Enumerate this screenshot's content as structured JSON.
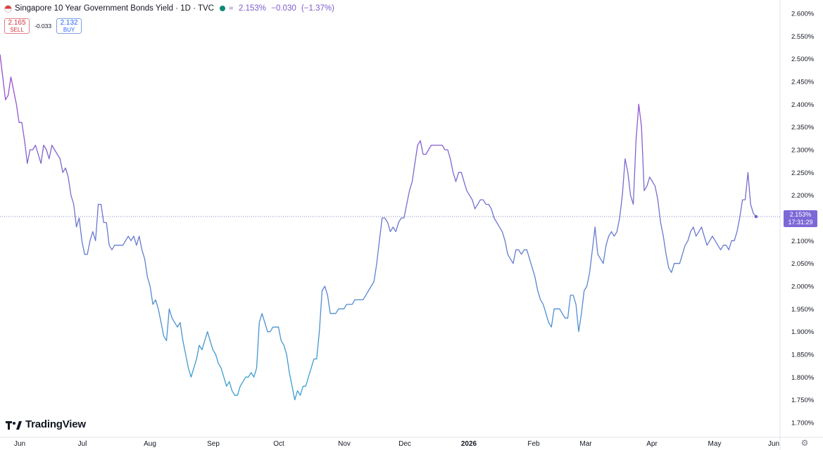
{
  "header": {
    "title": "Singapore 10 Year Government Bonds Yield · 1D · TVC",
    "last_value": "2.153%",
    "change": "−0.030",
    "change_pct": "(−1.37%)",
    "flag_icon": "singapore-flag-icon",
    "status_icon": "market-status-dot-icon",
    "compare_icon": "wave-icon"
  },
  "trade": {
    "sell_price": "2.165",
    "sell_label": "SELL",
    "spread": "-0.033",
    "buy_price": "2.132",
    "buy_label": "BUY"
  },
  "logo_text": "TradingView",
  "price_tag": {
    "value": "2.153%",
    "countdown": "17:31:29"
  },
  "chart_data": {
    "type": "line",
    "xlabel": "",
    "ylabel": "",
    "ylim": [
      1.685,
      2.61
    ],
    "y_ticks": [
      "2.600%",
      "2.550%",
      "2.500%",
      "2.450%",
      "2.400%",
      "2.350%",
      "2.300%",
      "2.250%",
      "2.200%",
      "2.150%",
      "2.100%",
      "2.050%",
      "2.000%",
      "1.950%",
      "1.900%",
      "1.850%",
      "1.800%",
      "1.750%",
      "1.700%"
    ],
    "x_ticks": [
      "Jun",
      "Jul",
      "Aug",
      "Sep",
      "Oct",
      "Nov",
      "Dec",
      "2026",
      "Feb",
      "Mar",
      "Apr",
      "May",
      "Jun"
    ],
    "grid": false,
    "gradient": [
      "#9a4fd0",
      "#3a9fd0"
    ],
    "last_value": 2.153,
    "series": [
      {
        "values": [
          2.51,
          2.46,
          2.41,
          2.42,
          2.46,
          2.43,
          2.4,
          2.36,
          2.36,
          2.32,
          2.27,
          2.3,
          2.3,
          2.31,
          2.29,
          2.27,
          2.31,
          2.3,
          2.28,
          2.31,
          2.3,
          2.29,
          2.28,
          2.25,
          2.26,
          2.24,
          2.2,
          2.18,
          2.13,
          2.15,
          2.1,
          2.07,
          2.07,
          2.1,
          2.12,
          2.1,
          2.18,
          2.18,
          2.14,
          2.14,
          2.09,
          2.08,
          2.09,
          2.09,
          2.09,
          2.09,
          2.1,
          2.11,
          2.1,
          2.11,
          2.09,
          2.11,
          2.08,
          2.06,
          2.02,
          2.0,
          1.96,
          1.97,
          1.95,
          1.92,
          1.89,
          1.88,
          1.95,
          1.93,
          1.92,
          1.91,
          1.92,
          1.88,
          1.85,
          1.82,
          1.8,
          1.82,
          1.84,
          1.87,
          1.86,
          1.88,
          1.9,
          1.88,
          1.86,
          1.85,
          1.83,
          1.82,
          1.8,
          1.78,
          1.79,
          1.77,
          1.76,
          1.76,
          1.78,
          1.79,
          1.8,
          1.8,
          1.81,
          1.8,
          1.82,
          1.92,
          1.94,
          1.92,
          1.9,
          1.9,
          1.91,
          1.91,
          1.91,
          1.88,
          1.87,
          1.85,
          1.81,
          1.78,
          1.75,
          1.77,
          1.76,
          1.78,
          1.78,
          1.8,
          1.82,
          1.84,
          1.84,
          1.9,
          1.99,
          2.0,
          1.98,
          1.94,
          1.94,
          1.94,
          1.95,
          1.95,
          1.95,
          1.96,
          1.96,
          1.96,
          1.97,
          1.97,
          1.97,
          1.97,
          1.98,
          1.99,
          2.0,
          2.01,
          2.05,
          2.1,
          2.15,
          2.15,
          2.14,
          2.12,
          2.13,
          2.12,
          2.14,
          2.15,
          2.15,
          2.18,
          2.21,
          2.23,
          2.27,
          2.31,
          2.32,
          2.29,
          2.29,
          2.3,
          2.31,
          2.31,
          2.31,
          2.31,
          2.31,
          2.3,
          2.3,
          2.28,
          2.25,
          2.23,
          2.25,
          2.25,
          2.23,
          2.21,
          2.2,
          2.19,
          2.17,
          2.18,
          2.19,
          2.19,
          2.18,
          2.18,
          2.17,
          2.15,
          2.14,
          2.13,
          2.12,
          2.1,
          2.07,
          2.06,
          2.05,
          2.08,
          2.08,
          2.07,
          2.08,
          2.08,
          2.06,
          2.04,
          2.02,
          1.99,
          1.97,
          1.96,
          1.94,
          1.92,
          1.91,
          1.95,
          1.95,
          1.95,
          1.94,
          1.93,
          1.93,
          1.98,
          1.98,
          1.96,
          1.9,
          1.94,
          1.99,
          2.0,
          2.03,
          2.08,
          2.13,
          2.07,
          2.06,
          2.05,
          2.09,
          2.11,
          2.12,
          2.11,
          2.12,
          2.15,
          2.2,
          2.28,
          2.25,
          2.2,
          2.18,
          2.32,
          2.4,
          2.35,
          2.21,
          2.22,
          2.24,
          2.23,
          2.22,
          2.19,
          2.14,
          2.11,
          2.07,
          2.04,
          2.03,
          2.05,
          2.05,
          2.05,
          2.07,
          2.09,
          2.1,
          2.12,
          2.13,
          2.11,
          2.12,
          2.13,
          2.11,
          2.09,
          2.1,
          2.11,
          2.1,
          2.09,
          2.08,
          2.09,
          2.09,
          2.08,
          2.1,
          2.1,
          2.12,
          2.15,
          2.19,
          2.19,
          2.25,
          2.18,
          2.16,
          2.153
        ]
      }
    ]
  }
}
